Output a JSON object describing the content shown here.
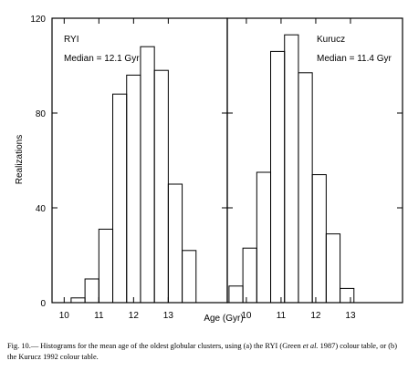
{
  "chart_data": [
    {
      "type": "bar",
      "panel_label": "RYI",
      "median_label": "Median = 12.1 Gyr",
      "bin_edges": [
        9.8,
        10.2,
        10.6,
        11.0,
        11.4,
        11.8,
        12.2,
        12.6,
        13.0,
        13.4,
        13.8
      ],
      "values": [
        0,
        2,
        10,
        31,
        88,
        96,
        108,
        98,
        50,
        22
      ],
      "xlim": [
        9.65,
        14.7
      ],
      "ylim": [
        0,
        120
      ],
      "xticks": [
        10,
        11,
        12,
        13
      ],
      "yticks": [
        0,
        40,
        80,
        120
      ],
      "ylabel": "Realizations",
      "xlabel": ""
    },
    {
      "type": "bar",
      "panel_label": "Kurucz",
      "median_label": "Median = 11.4 Gyr",
      "bin_edges": [
        9.5,
        9.9,
        10.3,
        10.7,
        11.1,
        11.5,
        11.9,
        12.3,
        12.7,
        13.1
      ],
      "values": [
        7,
        23,
        55,
        106,
        113,
        97,
        54,
        29,
        6
      ],
      "xlim": [
        9.45,
        14.5
      ],
      "ylim": [
        0,
        120
      ],
      "xticks": [
        10,
        11,
        12,
        13
      ],
      "yticks": [
        0,
        40,
        80,
        120
      ],
      "ylabel": "",
      "xlabel": ""
    }
  ],
  "shared_xlabel": "Age (Gyr)",
  "caption": {
    "lead": "Fig. 10.— Histograms for the mean age of the oldest globular clusters, using (a) the RYI (Green",
    "etal": "et al.",
    "rest": "1987) colour table, or (b) the Kurucz 1992 colour table."
  }
}
